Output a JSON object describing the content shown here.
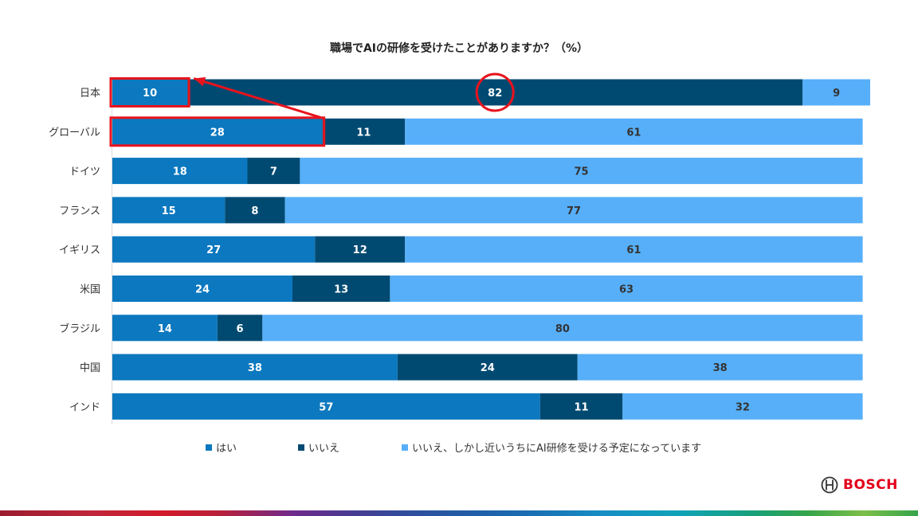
{
  "chart_data": {
    "type": "bar",
    "orientation": "horizontal",
    "stacked": true,
    "title": "職場でAIの研修を受けたことがありますか？（%）",
    "categories": [
      "日本",
      "グローバル",
      "ドイツ",
      "フランス",
      "イギリス",
      "米国",
      "ブラジル",
      "中国",
      "インド"
    ],
    "series": [
      {
        "name": "はい",
        "color": "#0b78bf",
        "values": [
          10,
          28,
          18,
          15,
          27,
          24,
          14,
          38,
          57
        ]
      },
      {
        "name": "いいえ",
        "color": "#004a72",
        "values": [
          82,
          11,
          7,
          8,
          12,
          13,
          6,
          24,
          11
        ]
      },
      {
        "name": "いいえ、しかし近いうちにAI研修を受ける予定になっています",
        "color": "#57aff9",
        "values": [
          9,
          61,
          75,
          77,
          61,
          63,
          80,
          38,
          32
        ]
      }
    ],
    "xlim": [
      0,
      101
    ],
    "legend_position": "bottom",
    "annotations": [
      {
        "type": "box",
        "target": "日本 / はい"
      },
      {
        "type": "box",
        "target": "グローバル / はい"
      },
      {
        "type": "arrow",
        "from": "グローバル / はい",
        "to": "日本 / はい"
      },
      {
        "type": "circle",
        "target": "日本 / いいえ"
      }
    ]
  },
  "brand": {
    "logo_text": "BOSCH",
    "logo_icon": "bosch-armature-icon",
    "logo_color": "#e2001a"
  },
  "colors": {
    "highlight": "#e8131d"
  }
}
